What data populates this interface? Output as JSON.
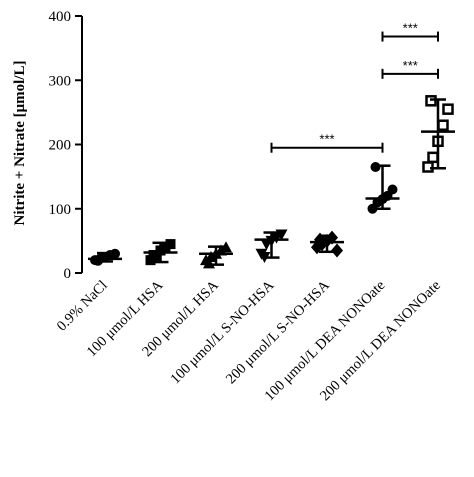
{
  "chart_data": {
    "type": "scatter",
    "ylabel": "Nitrite + Nitrate [μmol/L]",
    "xlabel": "",
    "title": "",
    "ylim": [
      0,
      400
    ],
    "yticks": [
      0,
      100,
      200,
      300,
      400
    ],
    "grid": false,
    "legend": "none",
    "categories": [
      "0.9% NaCl",
      "100 μmol/L HSA",
      "200 μmol/L HSA",
      "100 μmol/L S-NO-HSA",
      "200 μmol/L S-NO-HSA",
      "100 μmol/L DEA NONOate",
      "200 μmol/L DEA NONOate"
    ],
    "groups": [
      {
        "marker": "circle",
        "points": [
          20,
          22,
          25,
          28,
          30,
          19
        ],
        "median": 22,
        "range": [
          18,
          31
        ]
      },
      {
        "marker": "square",
        "points": [
          20,
          25,
          35,
          40,
          45,
          28
        ],
        "median": 32,
        "range": [
          17,
          47
        ]
      },
      {
        "marker": "triangle-up",
        "points": [
          20,
          25,
          30,
          35,
          40,
          15
        ],
        "median": 30,
        "range": [
          13,
          41
        ]
      },
      {
        "marker": "triangle-down",
        "points": [
          30,
          45,
          50,
          55,
          60,
          25
        ],
        "median": 52,
        "range": [
          24,
          63
        ]
      },
      {
        "marker": "diamond",
        "points": [
          40,
          45,
          50,
          55,
          35,
          52
        ],
        "median": 48,
        "range": [
          33,
          58
        ]
      },
      {
        "marker": "circle",
        "points": [
          100,
          110,
          115,
          120,
          130,
          165
        ],
        "median": 116,
        "range": [
          100,
          167
        ]
      },
      {
        "marker": "square-open",
        "points": [
          165,
          180,
          205,
          230,
          255,
          268
        ],
        "median": 220,
        "range": [
          163,
          270
        ]
      }
    ],
    "significance": [
      {
        "from": 3,
        "to": 5,
        "label": "***",
        "y": 195
      },
      {
        "from": 5,
        "to": 6,
        "label": "***",
        "y": 310
      },
      {
        "from": 5,
        "to": 6,
        "label": "***",
        "y": 368
      }
    ]
  }
}
